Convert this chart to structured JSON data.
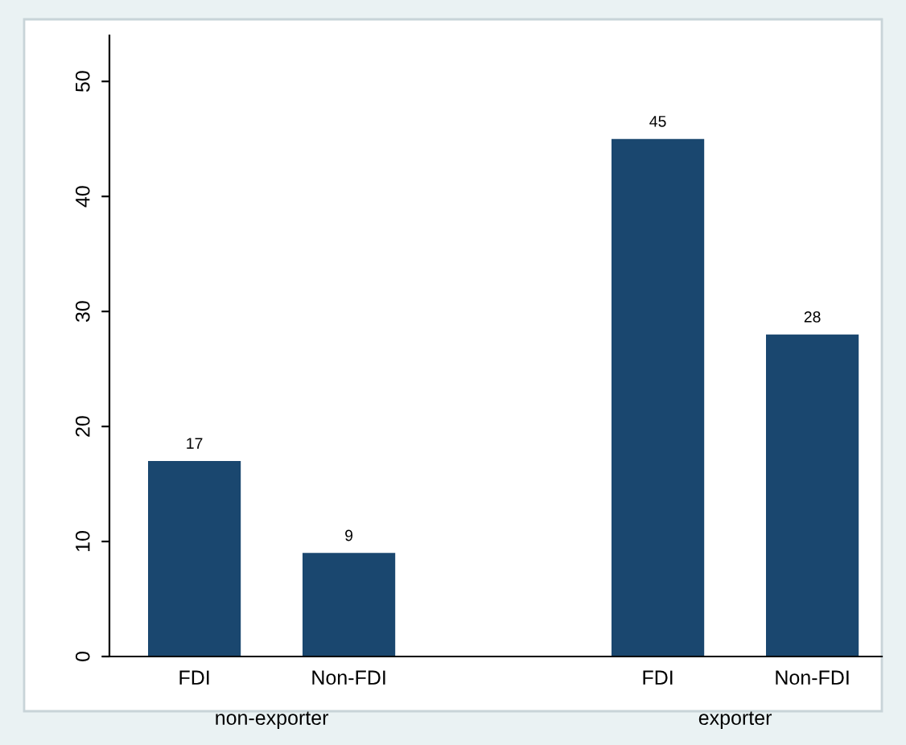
{
  "chart_data": {
    "type": "bar",
    "categories": [
      "FDI",
      "Non-FDI",
      null,
      "FDI",
      "Non-FDI"
    ],
    "values": [
      17,
      9,
      null,
      45,
      28
    ],
    "color": "#1a476f",
    "data_labels": true,
    "ylim": [
      0,
      54
    ],
    "yticks": [
      0,
      10,
      20,
      30,
      40,
      50
    ],
    "grid": false,
    "annotations": [
      "non-exporter",
      "exporter"
    ]
  }
}
